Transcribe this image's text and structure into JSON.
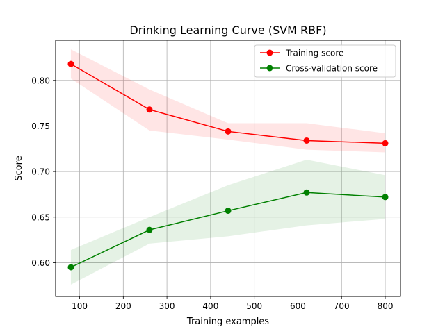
{
  "chart_data": {
    "type": "line",
    "title": "Drinking Learning Curve (SVM RBF)",
    "xlabel": "Training examples",
    "ylabel": "Score",
    "xlim": [
      45,
      835
    ],
    "ylim": [
      0.563,
      0.844
    ],
    "xticks": [
      100,
      200,
      300,
      400,
      500,
      600,
      700,
      800
    ],
    "xtick_labels": [
      "100",
      "200",
      "300",
      "400",
      "500",
      "600",
      "700",
      "800"
    ],
    "yticks": [
      0.6,
      0.65,
      0.7,
      0.75,
      0.8
    ],
    "ytick_labels": [
      "0.60",
      "0.65",
      "0.70",
      "0.75",
      "0.80"
    ],
    "grid": true,
    "legend_position": "top-right",
    "x": [
      80,
      260,
      440,
      620,
      800
    ],
    "series": [
      {
        "name": "Training score",
        "color": "#ff0000",
        "values": [
          0.818,
          0.768,
          0.744,
          0.734,
          0.731
        ],
        "band_lower": [
          0.802,
          0.745,
          0.735,
          0.724,
          0.721
        ],
        "band_upper": [
          0.834,
          0.79,
          0.753,
          0.753,
          0.742
        ]
      },
      {
        "name": "Cross-validation score",
        "color": "#008000",
        "values": [
          0.595,
          0.636,
          0.657,
          0.677,
          0.672
        ],
        "band_lower": [
          0.576,
          0.621,
          0.629,
          0.641,
          0.648
        ],
        "band_upper": [
          0.614,
          0.65,
          0.685,
          0.713,
          0.696
        ]
      }
    ]
  }
}
